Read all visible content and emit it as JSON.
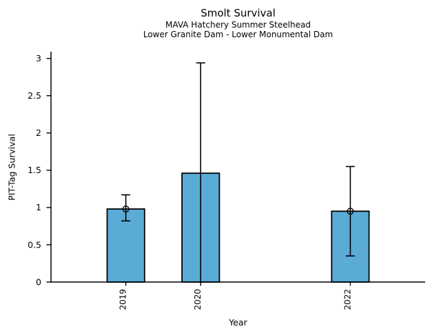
{
  "chart_data": {
    "type": "bar",
    "title": "Smolt Survival",
    "subtitles": [
      "MAVA Hatchery Summer Steelhead",
      "Lower Granite Dam - Lower Monumental Dam"
    ],
    "xlabel": "Year",
    "ylabel": "PIT-Tag Survival",
    "categories": [
      "2019",
      "2020",
      "2022"
    ],
    "x": [
      2019,
      2020,
      2022
    ],
    "values": [
      0.98,
      1.46,
      0.95
    ],
    "error_low": [
      0.82,
      0,
      0.35
    ],
    "error_high": [
      1.17,
      2.94,
      1.55
    ],
    "point_markers": [
      true,
      false,
      true
    ],
    "xlim": [
      2018,
      2023
    ],
    "ylim": [
      0,
      3.09
    ],
    "yticks": [
      0,
      0.5,
      1,
      1.5,
      2,
      2.5,
      3
    ],
    "ytick_labels": [
      "0",
      "0.5",
      "1",
      "1.5",
      "2",
      "2.5",
      "3"
    ],
    "xtick_labels": [
      "2019",
      "2020",
      "2022"
    ],
    "bar_width": 0.5,
    "bar_color": "#5AABD6",
    "edge_color": "#000000",
    "axis_color": "#000000",
    "error_color": "#000000",
    "background": "#ffffff",
    "grid": false,
    "legend": "none"
  }
}
